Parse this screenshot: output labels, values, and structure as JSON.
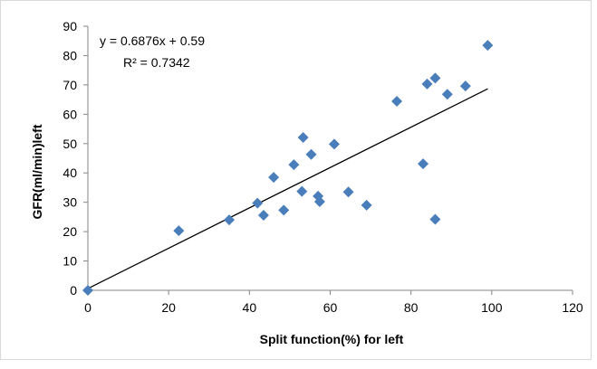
{
  "chart_data": {
    "type": "scatter",
    "title": "",
    "xlabel": "Split function(%) for left",
    "ylabel": "GFR(ml/min)left",
    "xlim": [
      0,
      120
    ],
    "ylim": [
      0,
      90
    ],
    "xticks": [
      0,
      20,
      40,
      60,
      80,
      100,
      120
    ],
    "yticks": [
      0,
      10,
      20,
      30,
      40,
      50,
      60,
      70,
      80,
      90
    ],
    "grid": false,
    "legend": "none",
    "marker": "diamond",
    "marker_color": "#4a7ebb",
    "trendline_color": "#000000",
    "series": [
      {
        "points": [
          [
            0,
            0
          ],
          [
            22.5,
            20.3
          ],
          [
            35,
            24
          ],
          [
            42,
            29.7
          ],
          [
            43.5,
            25.6
          ],
          [
            46,
            38.5
          ],
          [
            48.5,
            27.3
          ],
          [
            51,
            42.8
          ],
          [
            53,
            33.7
          ],
          [
            53.3,
            52.1
          ],
          [
            55.3,
            46.3
          ],
          [
            57,
            32.1
          ],
          [
            57.4,
            30.2
          ],
          [
            61,
            49.8
          ],
          [
            64.5,
            33.5
          ],
          [
            69,
            29
          ],
          [
            76.5,
            64.4
          ],
          [
            83,
            43.1
          ],
          [
            84,
            70.3
          ],
          [
            86,
            24.2
          ],
          [
            86,
            72.3
          ],
          [
            89,
            66.8
          ],
          [
            93.5,
            69.6
          ],
          [
            99,
            83.5
          ]
        ]
      }
    ],
    "trendline": {
      "slope": 0.6876,
      "intercept": 0.59,
      "x_range": [
        0,
        99
      ]
    },
    "annotations": {
      "equation": "y = 0.6876x + 0.59",
      "r_squared": "R² = 0.7342"
    }
  }
}
